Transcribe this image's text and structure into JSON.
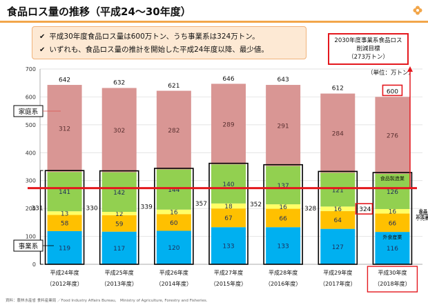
{
  "header": {
    "title": "食品ロス量の推移（平成24～30年度）"
  },
  "summary": {
    "lines": [
      "平成30年度食品ロス量は600万トン、うち事業系は324万トン。",
      "いずれも、食品ロス量の推計を開始した平成24年度以降、最少値。"
    ]
  },
  "target": {
    "line1": "2030年度事業系食品ロス",
    "line2": "削減目標",
    "line3": "（273万トン）",
    "value": 273
  },
  "source": "資料：農林水産省 食料産業局 ／Food Industry Affairs Bureau,　Ministry of Agriculture, Forestry and Fisheries.",
  "chart_data": {
    "type": "bar",
    "stacked": true,
    "unit_label": "（単位：万トン）",
    "ylim": [
      0,
      700
    ],
    "yticks": [
      0,
      100,
      200,
      300,
      400,
      500,
      600,
      700
    ],
    "categories": [
      {
        "year": "平成24年度",
        "western": "（2012年度）"
      },
      {
        "year": "平成25年度",
        "western": "（2013年度）"
      },
      {
        "year": "平成26年度",
        "western": "（2014年度）"
      },
      {
        "year": "平成27年度",
        "western": "（2015年度）"
      },
      {
        "year": "平成28年度",
        "western": "（2016年度）"
      },
      {
        "year": "平成29年度",
        "western": "（2017年度）"
      },
      {
        "year": "平成30年度",
        "western": "（2018年度）"
      }
    ],
    "totals": [
      642,
      632,
      621,
      646,
      643,
      612,
      600
    ],
    "business_totals": [
      331,
      330,
      339,
      357,
      352,
      328,
      324
    ],
    "series": [
      {
        "key": "manufacturing",
        "name": "食品製造業",
        "color": "#92d050",
        "values": [
          141,
          142,
          144,
          140,
          137,
          121,
          126
        ]
      },
      {
        "key": "wholesale",
        "name": "食品卸売業",
        "color": "#ffff66",
        "values": [
          13,
          12,
          16,
          18,
          16,
          16,
          16
        ]
      },
      {
        "key": "retail",
        "name": "食品小売業",
        "color": "#ffc000",
        "values": [
          58,
          59,
          60,
          67,
          66,
          64,
          66
        ]
      },
      {
        "key": "restaurant",
        "name": "外食産業",
        "color": "#00b0f0",
        "values": [
          119,
          117,
          120,
          133,
          133,
          127,
          116
        ]
      },
      {
        "key": "household",
        "name": "家庭系",
        "color": "#d99694",
        "values": [
          312,
          302,
          282,
          289,
          291,
          284,
          276
        ]
      }
    ],
    "group_labels": {
      "household": "家庭系",
      "business": "事業系"
    },
    "inner_labels": {
      "manufacturing": "食品製造業",
      "restaurant": "外食産業",
      "wholesale_line1": "食品",
      "wholesale_line2": "卸売業",
      "retail_line1": "食品",
      "retail_line2": "小売業"
    }
  }
}
